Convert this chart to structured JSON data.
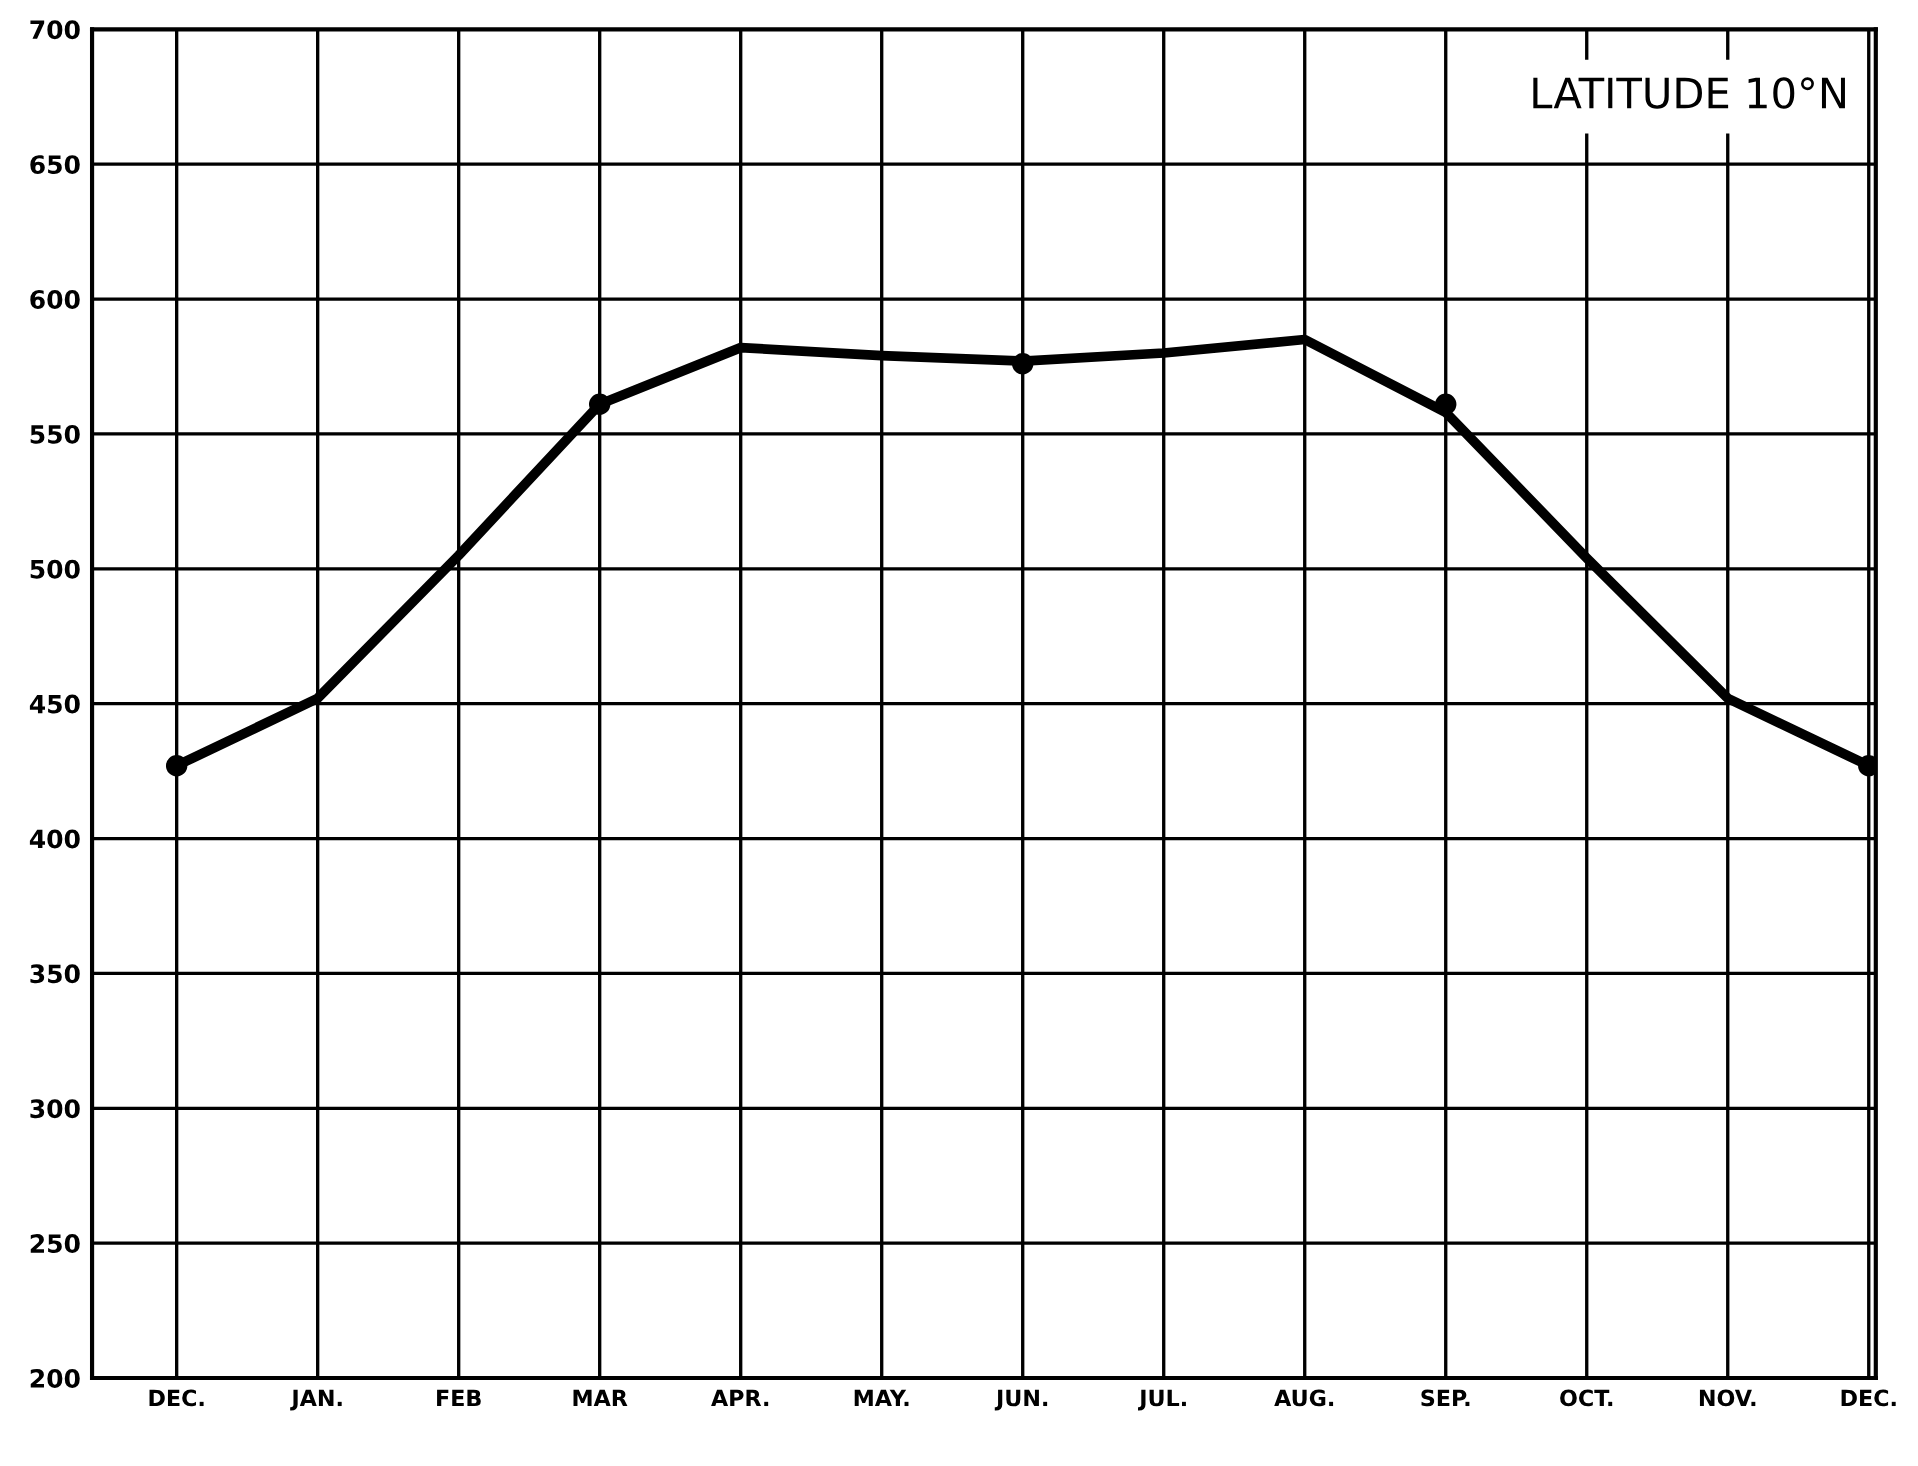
{
  "chart_data": {
    "type": "line",
    "annotations": [
      "LATITUDE 10°N"
    ],
    "categories": [
      "DEC.",
      "JAN.",
      "FEB",
      "MAR",
      "APR.",
      "MAY.",
      "JUN.",
      "JUL.",
      "AUG.",
      "SEP.",
      "OCT.",
      "NOV.",
      "DEC."
    ],
    "series": [
      {
        "color": "#000000",
        "line_style": "solid",
        "marker": "none",
        "values": [
          427,
          452,
          505,
          561,
          582,
          579,
          577,
          580,
          585,
          558,
          504,
          452,
          427
        ]
      },
      {
        "type": "scatter",
        "color": "#000000",
        "marker": "circle",
        "values": [
          427,
          null,
          null,
          561,
          null,
          null,
          576,
          null,
          null,
          561,
          null,
          null,
          427
        ]
      }
    ],
    "ylim": [
      200,
      700
    ],
    "yticks": [
      200,
      250,
      300,
      350,
      400,
      450,
      500,
      550,
      600,
      650,
      700
    ],
    "grid": true
  }
}
